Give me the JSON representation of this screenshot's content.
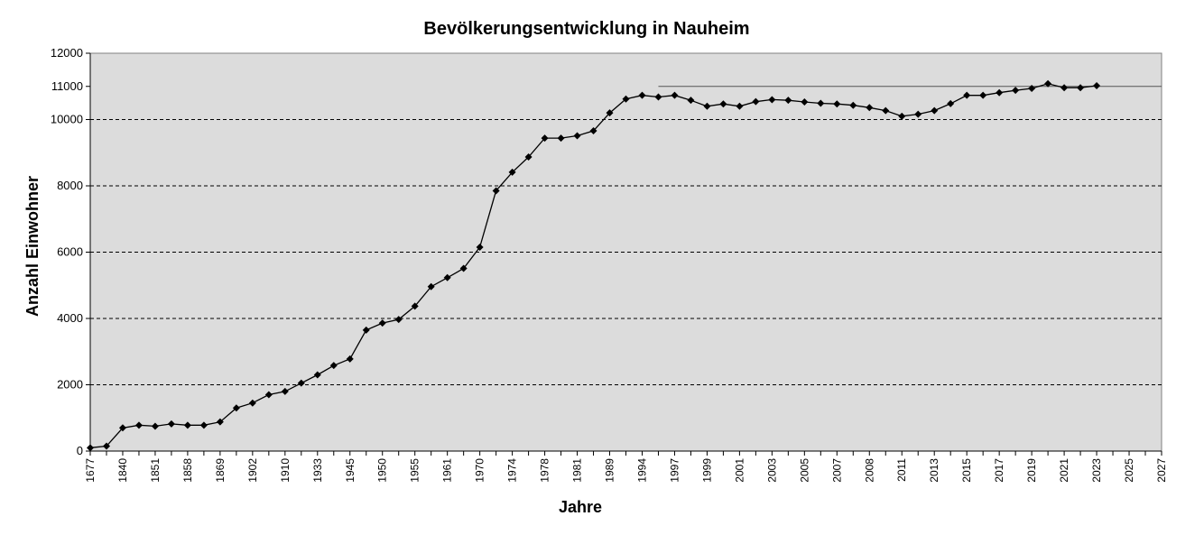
{
  "chart_data": {
    "type": "line",
    "title": "Bevölkerungsentwicklung in Nauheim",
    "xlabel": "Jahre",
    "ylabel": "Anzahl Einwohner",
    "ylim": [
      0,
      12000
    ],
    "yticks": [
      0,
      2000,
      4000,
      6000,
      8000,
      10000,
      11000,
      12000
    ],
    "grid": "horizontal dashed",
    "legend": "none",
    "x_tick_labels": [
      "1677",
      "1840",
      "1851",
      "1858",
      "1869",
      "1902",
      "1910",
      "1933",
      "1945",
      "1950",
      "1955",
      "1961",
      "1970",
      "1974",
      "1978",
      "1981",
      "1989",
      "1994",
      "1997",
      "1999",
      "2001",
      "2003",
      "2005",
      "2007",
      "2008",
      "2011",
      "2013",
      "2015",
      "2017",
      "2019",
      "2021",
      "2023",
      "2025",
      "2027"
    ],
    "reference_line": {
      "value": 11000
    },
    "series": [
      {
        "values": [
          100,
          150,
          700,
          780,
          750,
          820,
          780,
          780,
          880,
          1300,
          1450,
          1700,
          1800,
          2050,
          2300,
          2580,
          2780,
          3650,
          3860,
          3970,
          4370,
          4960,
          5230,
          5510,
          6150,
          7850,
          8410,
          8870,
          9440,
          9440,
          9510,
          9660,
          10200,
          10620,
          10730,
          10680,
          10730,
          10580,
          10400,
          10470,
          10400,
          10540,
          10600,
          10580,
          10530,
          10490,
          10470,
          10430,
          10360,
          10270,
          10100,
          10160,
          10270,
          10480,
          10730,
          10730,
          10810,
          10880,
          10940,
          11080,
          10960,
          10960,
          11020
        ]
      }
    ],
    "colors": {
      "plot_background": "#dcdcdc",
      "line": "#000000",
      "marker": "#000000",
      "grid": "#000000"
    }
  }
}
